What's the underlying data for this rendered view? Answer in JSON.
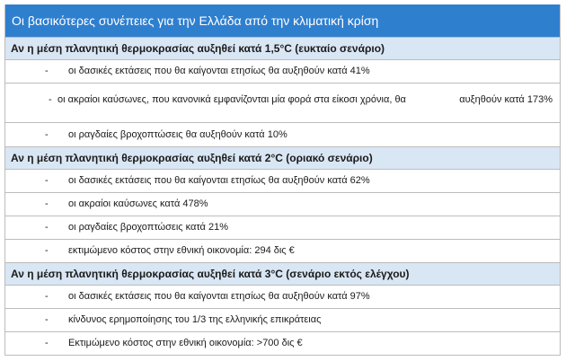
{
  "title": "Οι βασικότερες συνέπειες για την Ελλάδα από την κλιματική κρίση",
  "sections": [
    {
      "header": "Αν η μέση πλανητική θερμοκρασίας αυξηθεί κατά 1,5°C (ευκταίο σενάριο)",
      "items": [
        "οι δασικές εκτάσεις που θα καίγονται ετησίως θα αυξηθούν κατά 41%",
        "οι ακραίοι καύσωνες, που κανονικά εμφανίζονται μία φορά στα είκοσι χρόνια, θα",
        "οι ραγδαίες βροχοπτώσεις θα αυξηθούν κατά 10%"
      ],
      "item2_tail": "αυξηθούν κατά 173%"
    },
    {
      "header": "Αν η μέση πλανητική θερμοκρασίας αυξηθεί κατά 2°C (οριακό σενάριο)",
      "items": [
        "οι δασικές εκτάσεις που θα καίγονται ετησίως θα αυξηθούν κατά 62%",
        "οι ακραίοι καύσωνες κατά 478%",
        "οι ραγδαίες βροχοπτώσεις κατά 21%",
        "εκτιμώμενο κόστος στην εθνική οικονομία: 294 δις €"
      ]
    },
    {
      "header": "Αν η μέση πλανητική θερμοκρασίας αυξηθεί κατά 3°C (σενάριο εκτός ελέγχου)",
      "items": [
        "οι δασικές εκτάσεις που θα καίγονται ετησίως θα αυξηθούν κατά 97%",
        "κίνδυνος ερημοποίησης του 1/3 της ελληνικής επικράτειας",
        "Εκτιμώμενο κόστος στην εθνική οικονομία: >700 δις €"
      ]
    }
  ],
  "bullet": "-"
}
